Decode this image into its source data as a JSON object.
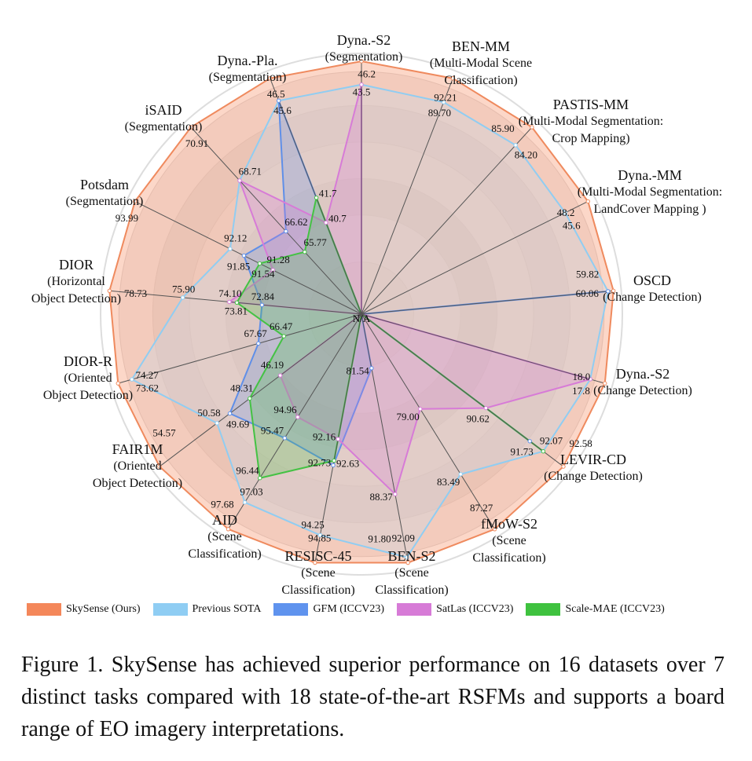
{
  "chart_data": {
    "type": "radar",
    "center_label": "N/A",
    "axes": [
      {
        "name": "Dyna.-S2",
        "sub": [
          "(Segmentation)"
        ],
        "range": [
          20,
          46.2
        ]
      },
      {
        "name": "BEN-MM",
        "sub": [
          "(Multi-Modal Scene",
          "Classification)"
        ],
        "range": [
          70,
          92.21
        ]
      },
      {
        "name": "PASTIS-MM",
        "sub": [
          "(Multi-Modal Segmentation:",
          "Crop Mapping)"
        ],
        "range": [
          70,
          85.9
        ]
      },
      {
        "name": "Dyna.-MM",
        "sub": [
          "(Multi-Modal Segmentation:",
          "LandCover Mapping )"
        ],
        "range": [
          25,
          48.2
        ]
      },
      {
        "name": "OSCD",
        "sub": [
          "(Change Detection)"
        ],
        "range": [
          50,
          60.06
        ]
      },
      {
        "name": "Dyna.-S2",
        "sub": [
          "(Change Detection)"
        ],
        "range": [
          15,
          18.0
        ]
      },
      {
        "name": "LEVIR-CD",
        "sub": [
          "(Change Detection)"
        ],
        "range": [
          88,
          92.58
        ]
      },
      {
        "name": "fMoW-S2",
        "sub": [
          "(Scene",
          "Classification)"
        ],
        "range": [
          74,
          87.27
        ]
      },
      {
        "name": "BEN-S2",
        "sub": [
          "(Scene",
          "Classification)"
        ],
        "range": [
          80,
          92.09
        ]
      },
      {
        "name": "RESISC-45",
        "sub": [
          "(Scene",
          "Classification)"
        ],
        "range": [
          90,
          94.85
        ]
      },
      {
        "name": "AID",
        "sub": [
          "(Scene",
          "Classification)"
        ],
        "range": [
          93,
          97.68
        ]
      },
      {
        "name": "FAIR1M",
        "sub": [
          "(Oriented",
          "Object Detection)"
        ],
        "range": [
          42,
          54.57
        ]
      },
      {
        "name": "DIOR-R",
        "sub": [
          "(Oriented",
          "Object Detection)"
        ],
        "range": [
          64,
          74.27
        ]
      },
      {
        "name": "DIOR",
        "sub": [
          "(Horizontal",
          "Object Detection)"
        ],
        "range": [
          70,
          78.73
        ]
      },
      {
        "name": "Potsdam",
        "sub": [
          "(Segmentation)"
        ],
        "range": [
          90,
          93.99
        ]
      },
      {
        "name": "iSAID",
        "sub": [
          "(Segmentation)"
        ],
        "range": [
          64,
          70.91
        ]
      },
      {
        "name": "Dyna.-Pla.",
        "sub": [
          "(Segmentation)"
        ],
        "range": [
          38,
          46.5
        ]
      }
    ],
    "series": [
      {
        "name": "SkySense (Ours)",
        "color": "#ef8a5e",
        "fill": "rgba(250,175,145,0.5)",
        "values": [
          46.2,
          92.21,
          85.9,
          48.2,
          60.06,
          18.0,
          92.58,
          87.27,
          92.09,
          94.85,
          97.68,
          54.57,
          74.27,
          78.73,
          93.99,
          70.91,
          46.5
        ]
      },
      {
        "name": "Previous SOTA",
        "color": "#90cdf2",
        "fill": "rgba(200,215,230,0.35)",
        "values": [
          43.5,
          89.7,
          84.2,
          45.6,
          59.82,
          17.8,
          92.07,
          83.49,
          91.8,
          94.25,
          97.03,
          50.58,
          73.62,
          75.9,
          92.12,
          68.71,
          45.6
        ]
      },
      {
        "name": "GFM (ICCV23)",
        "color": "#5f8fe8",
        "fill": "rgba(95,143,232,0.25)",
        "values": [
          null,
          null,
          null,
          null,
          59.82,
          null,
          91.73,
          null,
          81.54,
          92.73,
          95.47,
          49.69,
          67.67,
          72.84,
          91.85,
          66.62,
          45.6
        ]
      },
      {
        "name": "SatLas (ICCV23)",
        "color": "#d77bd7",
        "fill": "rgba(215,123,215,0.25)",
        "values": [
          43.5,
          null,
          null,
          null,
          null,
          17.8,
          90.62,
          79.0,
          88.37,
          92.16,
          94.96,
          46.19,
          null,
          74.1,
          91.28,
          68.71,
          40.7
        ]
      },
      {
        "name": "Scale-MAE (ICCV23)",
        "color": "#44c244",
        "fill": "rgba(68,194,68,0.25)",
        "values": [
          null,
          null,
          null,
          null,
          null,
          null,
          92.07,
          null,
          null,
          92.63,
          96.44,
          48.31,
          66.47,
          73.81,
          91.54,
          65.77,
          41.7
        ]
      }
    ],
    "legend_placement": "bottom"
  },
  "caption": "Figure 1.  SkySense has achieved superior performance on 16 datasets over 7 distinct tasks compared with 18 state-of-the-art RSFMs and supports a board range of EO imagery interpretations."
}
